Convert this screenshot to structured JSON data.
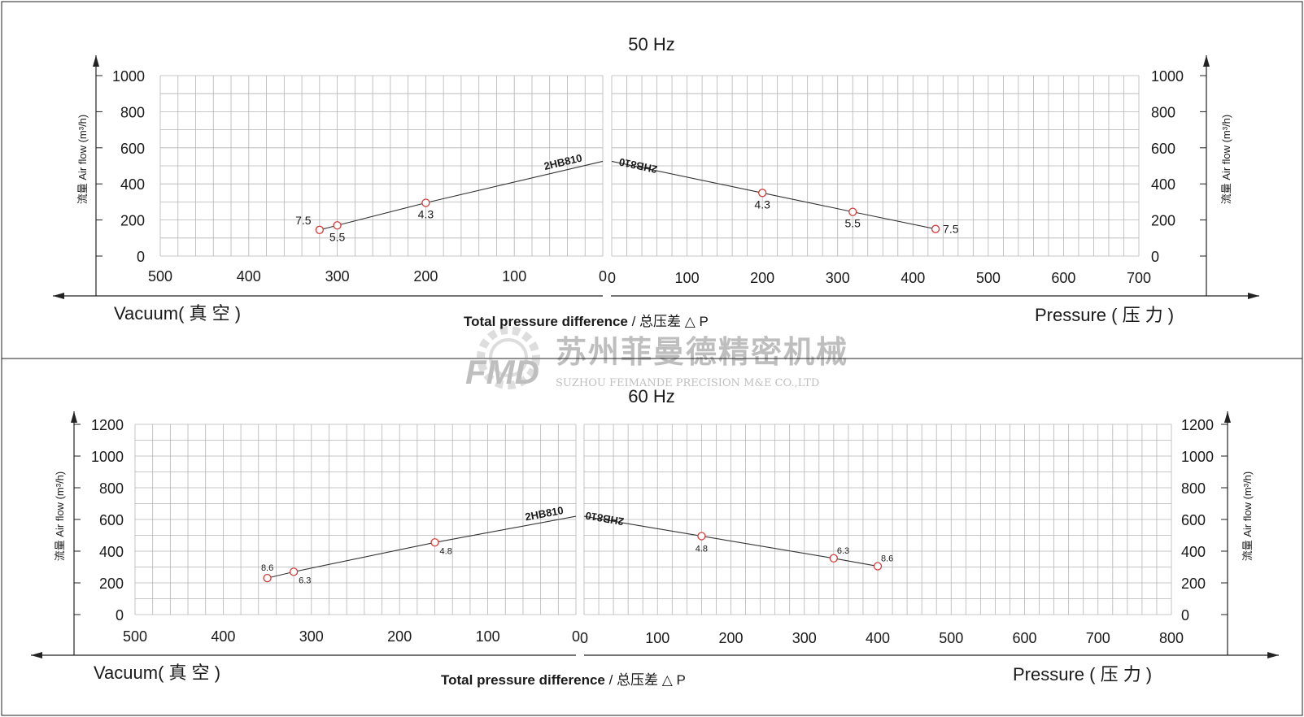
{
  "watermark": {
    "company_cn": "苏州菲曼德精密机械",
    "company_en": "SUZHOU FEIMANDE PRECISION M&E CO.,LTD",
    "logo_text": "FMD"
  },
  "chart_data": [
    {
      "type": "line",
      "title": "50 Hz",
      "ylabel": "流量 Air flow (m³/h)",
      "xlabel_bold": "Total pressure difference",
      "xlabel_cn": " / 总压差 △ P",
      "vacuum_label": "Vacuum( 真 空 )",
      "pressure_label": "Pressure ( 压 力 )",
      "grid": true,
      "left_panel": {
        "side": "vacuum",
        "xlim": [
          500,
          0
        ],
        "ylim": [
          0,
          1000
        ],
        "xticks": [
          500,
          400,
          300,
          200,
          100,
          0
        ],
        "yticks": [
          0,
          200,
          400,
          600,
          800,
          1000
        ],
        "series": [
          {
            "name": "2HB810",
            "x": [
              320,
              300,
              200,
              0
            ],
            "y": [
              145,
              170,
              295,
              525
            ],
            "points": [
              {
                "x": 320,
                "y": 145,
                "label": "7.5",
                "pos": "above-left"
              },
              {
                "x": 300,
                "y": 170,
                "label": "5.5",
                "pos": "below"
              },
              {
                "x": 200,
                "y": 295,
                "label": "4.3",
                "pos": "below"
              }
            ]
          }
        ]
      },
      "right_panel": {
        "side": "pressure",
        "xlim": [
          0,
          700
        ],
        "ylim": [
          0,
          1000
        ],
        "xticks": [
          0,
          100,
          200,
          300,
          400,
          500,
          600,
          700
        ],
        "yticks": [
          0,
          200,
          400,
          600,
          800,
          1000
        ],
        "series": [
          {
            "name": "2HB810",
            "x": [
              0,
              200,
              320,
              430
            ],
            "y": [
              525,
              350,
              245,
              150
            ],
            "points": [
              {
                "x": 200,
                "y": 350,
                "label": "4.3",
                "pos": "below"
              },
              {
                "x": 320,
                "y": 245,
                "label": "5.5",
                "pos": "below"
              },
              {
                "x": 430,
                "y": 150,
                "label": "7.5",
                "pos": "right"
              }
            ]
          }
        ]
      }
    },
    {
      "type": "line",
      "title": "60 Hz",
      "ylabel": "流量 Air flow (m³/h)",
      "xlabel_bold": "Total pressure difference",
      "xlabel_cn": " / 总压差 △ P",
      "vacuum_label": "Vacuum( 真 空 )",
      "pressure_label": "Pressure ( 压 力 )",
      "grid": true,
      "left_panel": {
        "side": "vacuum",
        "xlim": [
          500,
          0
        ],
        "ylim": [
          0,
          1200
        ],
        "xticks": [
          500,
          400,
          300,
          200,
          100,
          0
        ],
        "yticks": [
          0,
          200,
          400,
          600,
          800,
          1000,
          1200
        ],
        "series": [
          {
            "name": "2HB810",
            "x": [
              350,
              320,
              160,
              0
            ],
            "y": [
              230,
              270,
              455,
              620
            ],
            "points": [
              {
                "x": 350,
                "y": 230,
                "label": "8.6",
                "pos": "above"
              },
              {
                "x": 320,
                "y": 270,
                "label": "6.3",
                "pos": "below-right"
              },
              {
                "x": 160,
                "y": 455,
                "label": "4.8",
                "pos": "below-right"
              }
            ]
          }
        ]
      },
      "right_panel": {
        "side": "pressure",
        "xlim": [
          0,
          800
        ],
        "ylim": [
          0,
          1200
        ],
        "xticks": [
          0,
          100,
          200,
          300,
          400,
          500,
          600,
          700,
          800
        ],
        "yticks": [
          0,
          200,
          400,
          600,
          800,
          1000,
          1200
        ],
        "series": [
          {
            "name": "2HB810",
            "x": [
              0,
              160,
              340,
              400
            ],
            "y": [
              620,
              495,
              355,
              305
            ],
            "points": [
              {
                "x": 160,
                "y": 495,
                "label": "4.8",
                "pos": "below"
              },
              {
                "x": 340,
                "y": 355,
                "label": "6.3",
                "pos": "above-right"
              },
              {
                "x": 400,
                "y": 305,
                "label": "8.6",
                "pos": "above-right"
              }
            ]
          }
        ]
      }
    }
  ]
}
